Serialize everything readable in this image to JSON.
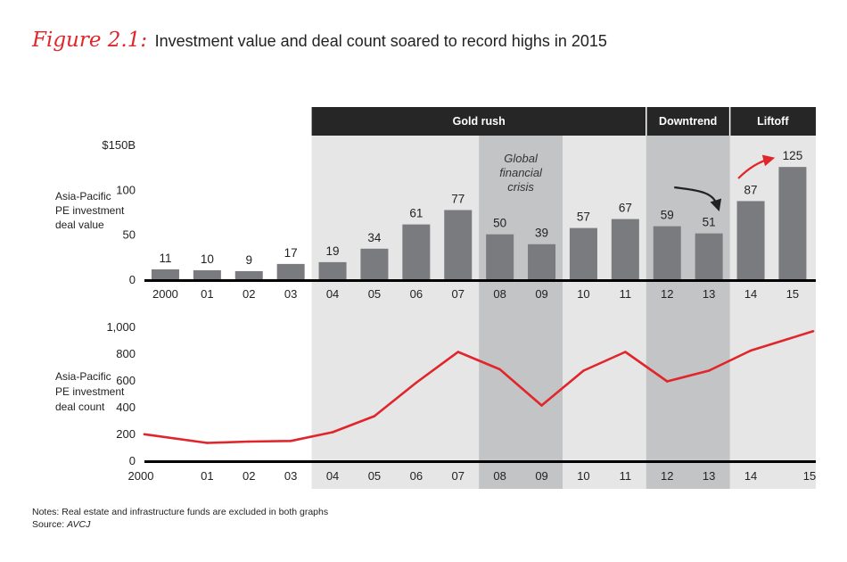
{
  "header": {
    "figure_label": "Figure 2.1:",
    "title": "Investment value and deal count soared to record highs in 2015"
  },
  "periods": [
    {
      "label": "Gold rush",
      "start": "04",
      "end": "11"
    },
    {
      "label": "Downtrend",
      "start": "12",
      "end": "13"
    },
    {
      "label": "Liftoff",
      "start": "14",
      "end": "15"
    }
  ],
  "crisis_band": {
    "lines": [
      "Global",
      "financial",
      "crisis"
    ],
    "start": "08",
    "end": "09"
  },
  "colors": {
    "bar": "#7a7b7e",
    "line": "#e0262b",
    "header_bar": "#262626",
    "shade_light": "#e6e6e7",
    "shade_dark": "#c3c4c6",
    "arrow_black": "#222222",
    "arrow_red": "#e0262b"
  },
  "chart_data": [
    {
      "type": "bar",
      "title": "Asia-Pacific PE investment deal value",
      "ylabel_lines": [
        "Asia-Pacific",
        "PE investment",
        "deal value"
      ],
      "categories": [
        "2000",
        "01",
        "02",
        "03",
        "04",
        "05",
        "06",
        "07",
        "08",
        "09",
        "10",
        "11",
        "12",
        "13",
        "14",
        "15"
      ],
      "values": [
        11,
        10,
        9,
        17,
        19,
        34,
        61,
        77,
        50,
        39,
        57,
        67,
        59,
        51,
        87,
        125
      ],
      "ylim": [
        0,
        150
      ],
      "yticks": [
        {
          "value": 0,
          "label": "0"
        },
        {
          "value": 50,
          "label": "50"
        },
        {
          "value": 100,
          "label": "100"
        },
        {
          "value": 150,
          "label": "$150B"
        }
      ]
    },
    {
      "type": "line",
      "title": "Asia-Pacific PE investment deal count",
      "ylabel_lines": [
        "Asia-Pacific",
        "PE investment",
        "deal count"
      ],
      "categories": [
        "2000",
        "01",
        "02",
        "03",
        "04",
        "05",
        "06",
        "07",
        "08",
        "09",
        "10",
        "11",
        "12",
        "13",
        "14",
        "15"
      ],
      "values": [
        195,
        130,
        140,
        145,
        210,
        330,
        580,
        810,
        680,
        410,
        670,
        810,
        590,
        670,
        820,
        965
      ],
      "ylim": [
        0,
        1000
      ],
      "yticks": [
        {
          "value": 0,
          "label": "0"
        },
        {
          "value": 200,
          "label": "200"
        },
        {
          "value": 400,
          "label": "400"
        },
        {
          "value": 600,
          "label": "600"
        },
        {
          "value": 800,
          "label": "800"
        },
        {
          "value": 1000,
          "label": "1,000"
        }
      ]
    }
  ],
  "notes": {
    "line1": "Notes: Real estate and infrastructure funds are excluded in both graphs",
    "source_prefix": "Source: ",
    "source_value": "AVCJ"
  }
}
